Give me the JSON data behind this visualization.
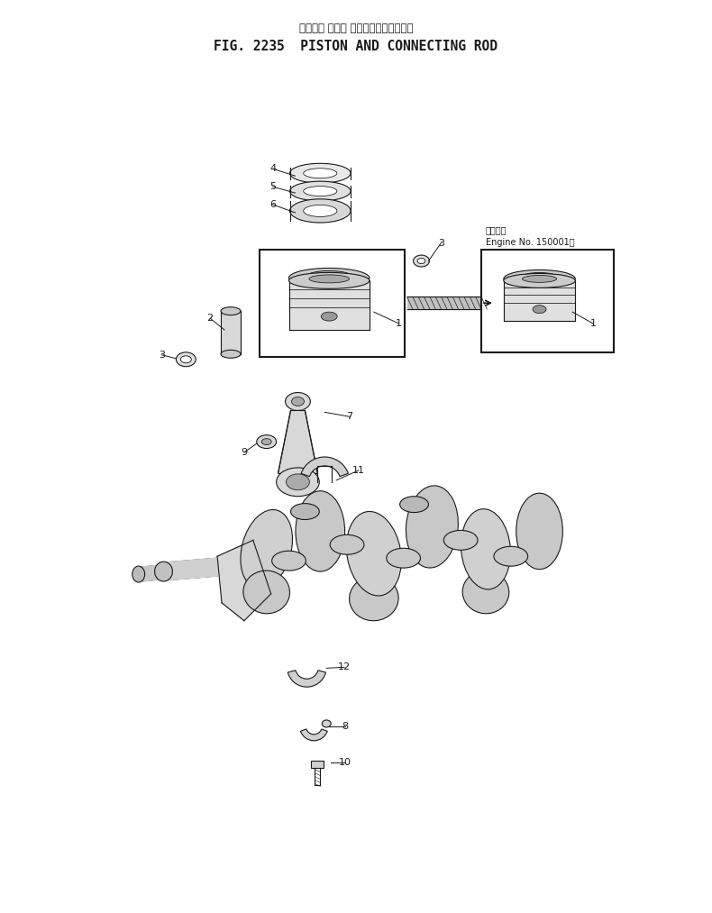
{
  "title_japanese": "ピストン および コネクティングロッド",
  "title_english": "FIG. 2235  PISTON AND CONNECTING ROD",
  "bg_color": "#ffffff",
  "line_color": "#1a1a1a",
  "fig_width": 7.9,
  "fig_height": 10.13,
  "dpi": 100,
  "engine_note_line1": "適用号値",
  "engine_note_line2": "Engine No. 150001～"
}
